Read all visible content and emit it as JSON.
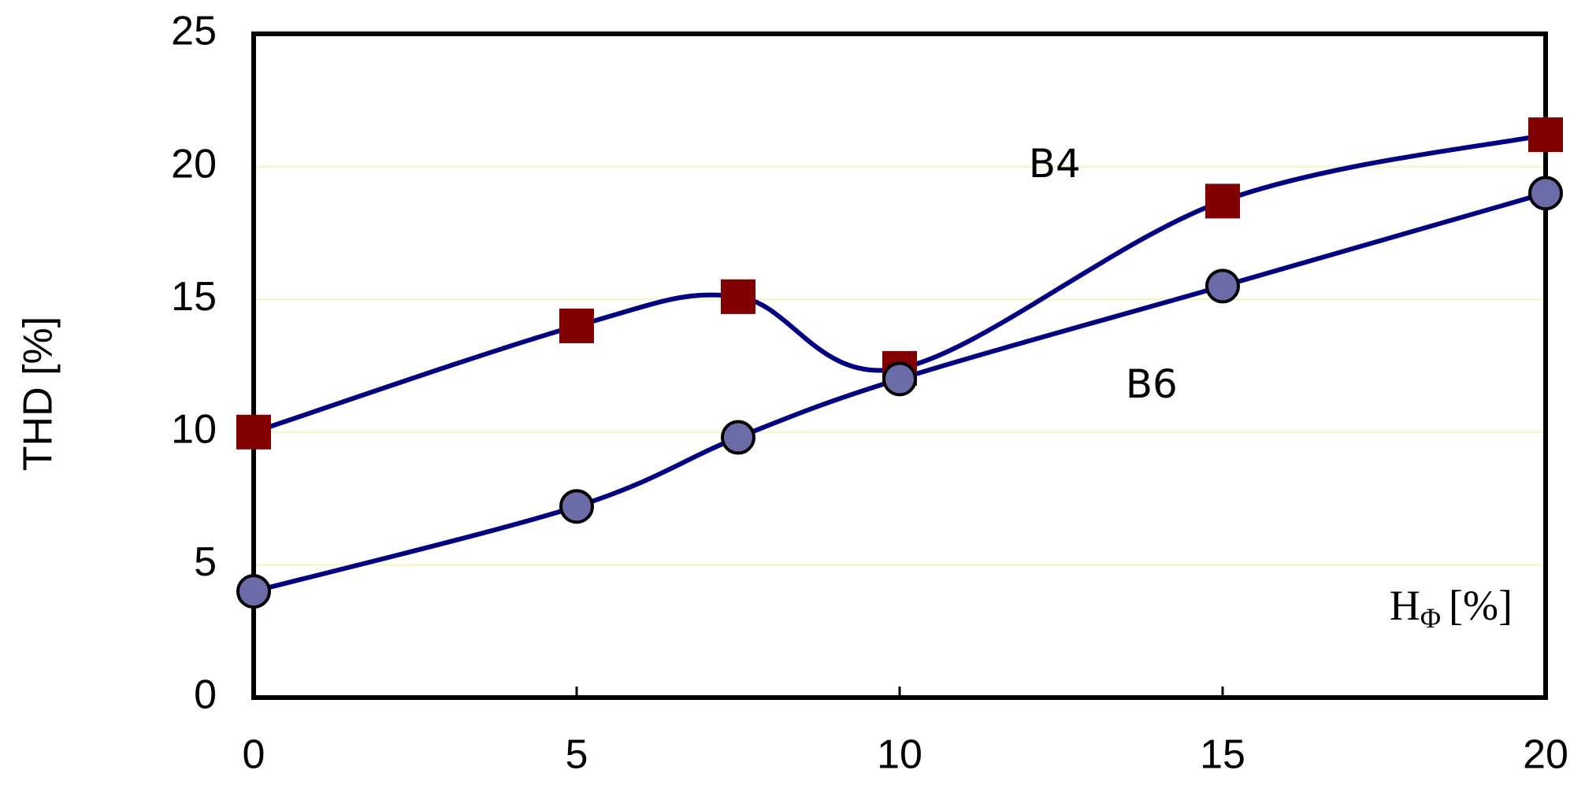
{
  "chart_data": {
    "type": "line",
    "y_label": "THD  [%]",
    "x_label": {
      "symbol": "H",
      "subscript": "Φ",
      "unit": "[%]"
    },
    "x": [
      0,
      5,
      7.5,
      10,
      15,
      20
    ],
    "series": [
      {
        "name": "B4",
        "color": "#000080",
        "marker": "square",
        "marker_color": "#800000",
        "values": [
          10,
          14,
          15.1,
          12.4,
          18.7,
          21.2
        ]
      },
      {
        "name": "B6",
        "color": "#000080",
        "marker": "circle",
        "marker_color": "#6b6ba8",
        "values": [
          4,
          7.2,
          9.8,
          12,
          15.5,
          19
        ]
      }
    ],
    "xlim": [
      0,
      20
    ],
    "xticks": [
      0,
      5,
      10,
      15,
      20
    ],
    "ylim": [
      0,
      25
    ],
    "yticks": [
      0,
      5,
      10,
      15,
      20,
      25
    ],
    "grid": true
  }
}
